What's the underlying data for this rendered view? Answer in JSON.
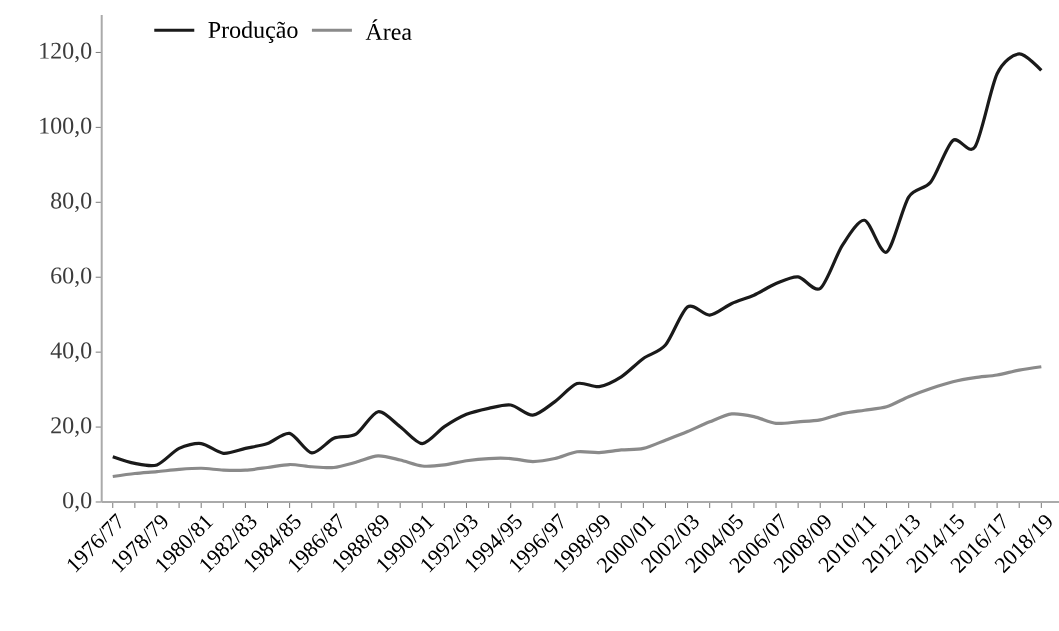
{
  "chart_data": {
    "type": "line",
    "categories": [
      "1976/77",
      null,
      "1978/79",
      null,
      "1980/81",
      null,
      "1982/83",
      null,
      "1984/85",
      null,
      "1986/87",
      null,
      "1988/89",
      null,
      "1990/91",
      null,
      "1992/93",
      null,
      "1994/95",
      null,
      "1996/97",
      null,
      "1998/99",
      null,
      "2000/01",
      null,
      "2002/03",
      null,
      "2004/05",
      null,
      "2006/07",
      null,
      "2008/09",
      null,
      "2010/11",
      null,
      "2012/13",
      null,
      "2014/15",
      null,
      "2016/17",
      null,
      "2018/19"
    ],
    "series": [
      {
        "name": "Produção",
        "color": "#1a1a1a",
        "values": [
          12.1,
          10.3,
          9.9,
          14.3,
          15.6,
          13.0,
          14.3,
          15.6,
          18.3,
          13.1,
          17.0,
          18.1,
          24.1,
          20.1,
          15.6,
          20.1,
          23.4,
          25.0,
          25.9,
          23.2,
          26.8,
          31.6,
          30.8,
          33.4,
          38.3,
          41.9,
          52.1,
          49.9,
          53.0,
          55.2,
          58.3,
          60.1,
          57.0,
          68.5,
          75.2,
          66.7,
          81.4,
          85.4,
          96.5,
          94.8,
          114.3,
          119.6,
          115.2
        ]
      },
      {
        "name": "Área",
        "color": "#8a8a8a",
        "values": [
          6.8,
          7.6,
          8.1,
          8.7,
          9.0,
          8.5,
          8.5,
          9.2,
          10.0,
          9.4,
          9.2,
          10.6,
          12.3,
          11.2,
          9.6,
          9.9,
          11.0,
          11.6,
          11.6,
          10.8,
          11.6,
          13.4,
          13.2,
          13.9,
          14.3,
          16.5,
          18.8,
          21.4,
          23.5,
          22.8,
          21.0,
          21.4,
          21.9,
          23.6,
          24.5,
          25.4,
          28.1,
          30.3,
          32.1,
          33.2,
          33.9,
          35.2,
          36.1
        ]
      }
    ],
    "ylim": [
      0,
      130
    ],
    "yticks": [
      {
        "value": 0,
        "label": "0,0"
      },
      {
        "value": 20,
        "label": "20,0"
      },
      {
        "value": 40,
        "label": "40,0"
      },
      {
        "value": 60,
        "label": "60,0"
      },
      {
        "value": 80,
        "label": "80,0"
      },
      {
        "value": 100,
        "label": "100,0"
      },
      {
        "value": 120,
        "label": "120,0"
      }
    ],
    "legend": "top left",
    "grid": false,
    "marker": "none",
    "line_style": "solid"
  }
}
